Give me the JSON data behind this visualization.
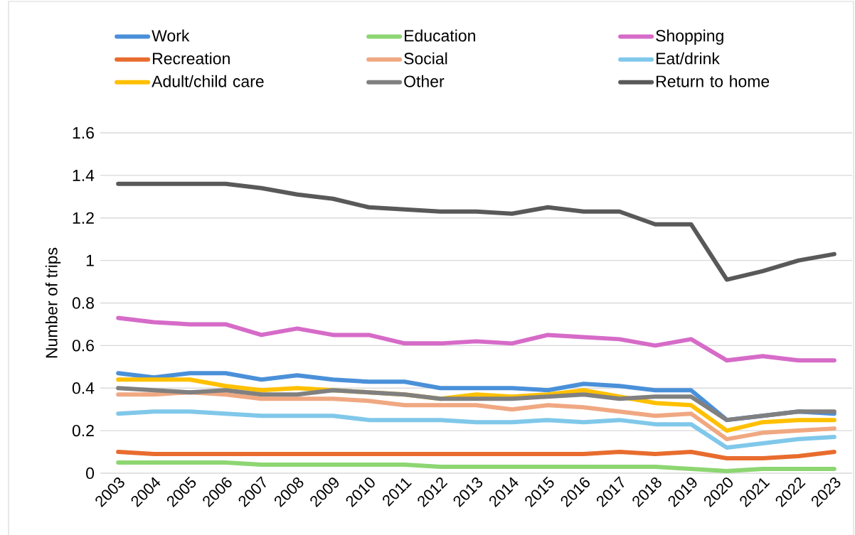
{
  "chart_data": {
    "type": "line",
    "ylabel": "Number of trips",
    "categories": [
      "2003",
      "2004",
      "2005",
      "2006",
      "2007",
      "2008",
      "2009",
      "2010",
      "2011",
      "2012",
      "2013",
      "2014",
      "2015",
      "2016",
      "2017",
      "2018",
      "2019",
      "2020",
      "2021",
      "2022",
      "2023"
    ],
    "ylim": [
      0,
      1.6
    ],
    "yticks": [
      0,
      0.2,
      0.4,
      0.6,
      0.8,
      1,
      1.2,
      1.4,
      1.6
    ],
    "grid": "y",
    "legend": "top",
    "line_style": "solid",
    "marker": "none",
    "series": [
      {
        "name": "Work",
        "color": "#4a90d9",
        "values": [
          0.47,
          0.45,
          0.47,
          0.47,
          0.44,
          0.46,
          0.44,
          0.43,
          0.43,
          0.4,
          0.4,
          0.4,
          0.39,
          0.42,
          0.41,
          0.39,
          0.39,
          0.25,
          0.27,
          0.29,
          0.28
        ]
      },
      {
        "name": "Education",
        "color": "#8dd672",
        "values": [
          0.05,
          0.05,
          0.05,
          0.05,
          0.04,
          0.04,
          0.04,
          0.04,
          0.04,
          0.03,
          0.03,
          0.03,
          0.03,
          0.03,
          0.03,
          0.03,
          0.02,
          0.01,
          0.02,
          0.02,
          0.02
        ]
      },
      {
        "name": "Shopping",
        "color": "#d66bc8",
        "values": [
          0.73,
          0.71,
          0.7,
          0.7,
          0.65,
          0.68,
          0.65,
          0.65,
          0.61,
          0.61,
          0.62,
          0.61,
          0.65,
          0.64,
          0.63,
          0.6,
          0.63,
          0.53,
          0.55,
          0.53,
          0.53
        ]
      },
      {
        "name": "Recreation",
        "color": "#e86c2e",
        "values": [
          0.1,
          0.09,
          0.09,
          0.09,
          0.09,
          0.09,
          0.09,
          0.09,
          0.09,
          0.09,
          0.09,
          0.09,
          0.09,
          0.09,
          0.1,
          0.09,
          0.1,
          0.07,
          0.07,
          0.08,
          0.1
        ]
      },
      {
        "name": "Social",
        "color": "#f0a882",
        "values": [
          0.37,
          0.37,
          0.38,
          0.37,
          0.35,
          0.35,
          0.35,
          0.34,
          0.32,
          0.32,
          0.32,
          0.3,
          0.32,
          0.31,
          0.29,
          0.27,
          0.28,
          0.16,
          0.19,
          0.2,
          0.21
        ]
      },
      {
        "name": "Eat/drink",
        "color": "#80c8ea",
        "values": [
          0.28,
          0.29,
          0.29,
          0.28,
          0.27,
          0.27,
          0.27,
          0.25,
          0.25,
          0.25,
          0.24,
          0.24,
          0.25,
          0.24,
          0.25,
          0.23,
          0.23,
          0.12,
          0.14,
          0.16,
          0.17
        ]
      },
      {
        "name": "Adult/child care",
        "color": "#ffc000",
        "values": [
          0.44,
          0.44,
          0.44,
          0.41,
          0.39,
          0.4,
          0.39,
          0.38,
          0.37,
          0.35,
          0.37,
          0.36,
          0.37,
          0.39,
          0.36,
          0.33,
          0.32,
          0.2,
          0.24,
          0.25,
          0.25
        ]
      },
      {
        "name": "Other",
        "color": "#808080",
        "values": [
          0.4,
          0.39,
          0.38,
          0.39,
          0.37,
          0.37,
          0.39,
          0.38,
          0.37,
          0.35,
          0.35,
          0.35,
          0.36,
          0.37,
          0.35,
          0.36,
          0.36,
          0.25,
          0.27,
          0.29,
          0.29
        ]
      },
      {
        "name": "Return to home",
        "color": "#595959",
        "values": [
          1.36,
          1.36,
          1.36,
          1.36,
          1.34,
          1.31,
          1.29,
          1.25,
          1.24,
          1.23,
          1.23,
          1.22,
          1.25,
          1.23,
          1.23,
          1.17,
          1.17,
          0.91,
          0.95,
          1.0,
          1.03
        ]
      }
    ]
  }
}
